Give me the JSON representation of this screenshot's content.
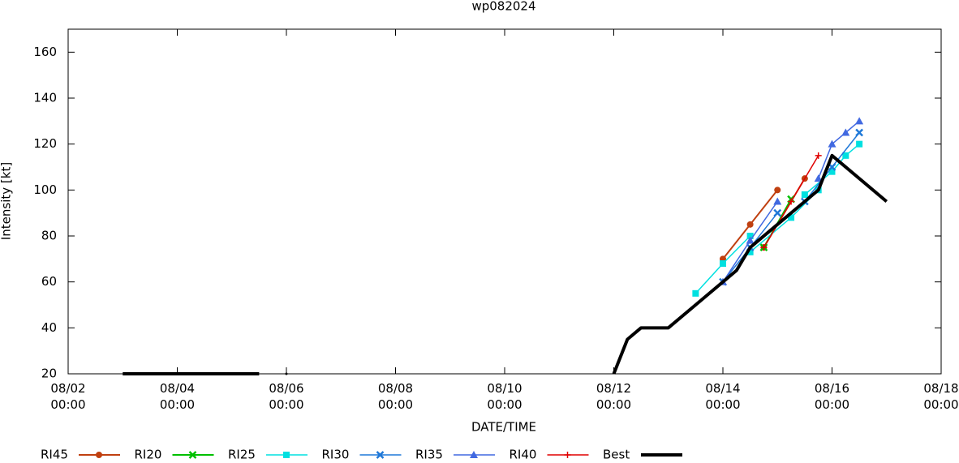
{
  "chart_data": {
    "type": "line",
    "title": "wp082024",
    "xlabel": "DATE/TIME",
    "ylabel": "Intensity [kt]",
    "xlim": [
      "08/02 00:00",
      "08/18 00:00"
    ],
    "xticks": [
      "08/02 00:00",
      "08/04 00:00",
      "08/06 00:00",
      "08/08 00:00",
      "08/10 00:00",
      "08/12 00:00",
      "08/14 00:00",
      "08/16 00:00",
      "08/18 00:00"
    ],
    "ylim": [
      20,
      170
    ],
    "yticks": [
      20,
      40,
      60,
      80,
      100,
      120,
      140,
      160
    ],
    "series": [
      {
        "name": "RI45",
        "color": "#c04010",
        "marker": "circle",
        "width": 2,
        "x": [
          "08/14 00:00",
          "08/14 12:00",
          "08/15 00:00",
          null,
          "08/14 18:00",
          "08/15 12:00"
        ],
        "values": [
          70,
          85,
          100,
          null,
          75,
          105
        ]
      },
      {
        "name": "RI20",
        "color": "#00c000",
        "marker": "x",
        "width": 2,
        "x": [
          "08/14 18:00",
          "08/15 06:00"
        ],
        "values": [
          75,
          96
        ]
      },
      {
        "name": "RI25",
        "color": "#00e0e0",
        "marker": "square",
        "width": 1.5,
        "x": [
          "08/13 12:00",
          "08/14 00:00",
          "08/14 12:00",
          null,
          "08/14 12:00",
          "08/15 06:00",
          "08/15 18:00",
          null,
          "08/15 12:00",
          "08/16 00:00",
          "08/16 06:00",
          "08/16 12:00"
        ],
        "values": [
          55,
          68,
          80,
          null,
          73,
          88,
          100,
          null,
          98,
          108,
          115,
          120
        ]
      },
      {
        "name": "RI30",
        "color": "#1e78d8",
        "marker": "x",
        "width": 1.5,
        "x": [
          "08/14 00:00",
          "08/14 12:00",
          "08/15 00:00",
          null,
          "08/15 12:00",
          "08/16 00:00",
          "08/16 12:00"
        ],
        "values": [
          60,
          75,
          90,
          null,
          95,
          110,
          125
        ]
      },
      {
        "name": "RI35",
        "color": "#4169e1",
        "marker": "triangle",
        "width": 1.5,
        "x": [
          "08/14 00:00",
          "08/14 12:00",
          "08/15 00:00",
          null,
          "08/15 18:00",
          "08/16 00:00",
          "08/16 06:00",
          "08/16 12:00"
        ],
        "values": [
          60,
          78,
          95,
          null,
          105,
          120,
          125,
          130
        ]
      },
      {
        "name": "RI40",
        "color": "#e00000",
        "marker": "plus",
        "width": 1.5,
        "x": [
          "08/14 18:00",
          "08/15 06:00",
          "08/15 18:00"
        ],
        "values": [
          75,
          95,
          115
        ]
      },
      {
        "name": "Best",
        "color": "#000000",
        "marker": "none",
        "width": 4,
        "x": [
          "08/03 00:00",
          "08/04 00:00",
          "08/05 00:00",
          "08/05 12:00",
          null,
          "08/06 00:00",
          null,
          "08/12 00:00",
          "08/12 06:00",
          "08/12 12:00",
          "08/13 00:00",
          "08/13 12:00",
          "08/14 00:00",
          "08/14 06:00",
          "08/14 12:00",
          "08/15 00:00",
          "08/15 12:00",
          "08/15 18:00",
          "08/16 00:00",
          "08/17 00:00"
        ],
        "values": [
          20,
          20,
          20,
          20,
          null,
          20,
          null,
          20,
          35,
          40,
          40,
          50,
          60,
          65,
          75,
          85,
          95,
          100,
          115,
          95
        ]
      }
    ]
  }
}
